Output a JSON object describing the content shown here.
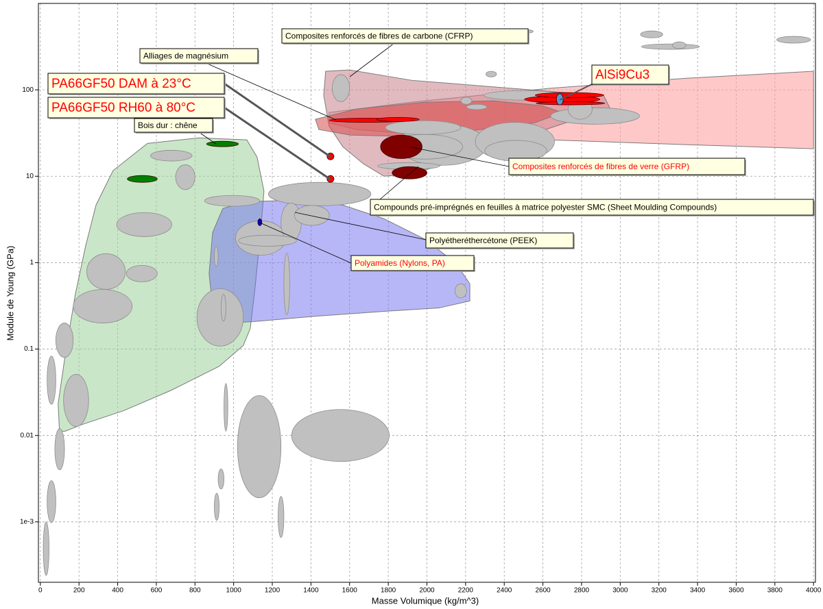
{
  "chart_data": {
    "type": "ashby",
    "xlabel": "Masse Volumique (kg/m^3)",
    "ylabel": "Module de Young (GPa)",
    "xlim": [
      -10,
      4010
    ],
    "ylim": [
      0.0002,
      1000
    ],
    "yscale": "log",
    "grid": true,
    "xticks": [
      0,
      200,
      400,
      600,
      800,
      1000,
      1200,
      1400,
      1600,
      1800,
      2000,
      2200,
      2400,
      2600,
      2800,
      3000,
      3200,
      3400,
      3600,
      3800,
      4000
    ],
    "yticks": [
      {
        "value": 0.001,
        "label": "1e-3"
      },
      0.01,
      0.1,
      1,
      10,
      100
    ],
    "envelopes": [
      {
        "color": "#9fd19a",
        "x": [
          99,
          92,
          128,
          181,
          234,
          288,
          376,
          554,
          820,
          1068,
          1121,
          1157,
          1139,
          1111,
          1086,
          1050,
          926,
          678,
          429,
          216,
          128
        ],
        "y": [
          0.0112,
          0.0232,
          0.0833,
          0.431,
          1.55,
          4.64,
          11.6,
          24,
          27.8,
          26.4,
          16.7,
          6.7,
          2.23,
          0.518,
          0.173,
          0.11,
          0.0633,
          0.0334,
          0.0193,
          0.0134,
          0.0112
        ]
      },
      {
        "color": "#6f6ff0",
        "x": [
          891,
          873,
          891,
          944,
          1068,
          1317,
          1565,
          1778,
          1991,
          2151,
          2222,
          2222,
          2062,
          1778,
          1423,
          1104,
          962
        ],
        "y": [
          0.299,
          0.746,
          2.23,
          4.24,
          5.08,
          5.28,
          4.64,
          3.22,
          1.86,
          0.98,
          0.567,
          0.36,
          0.299,
          0.273,
          0.24,
          0.208,
          0.2
        ]
      },
      {
        "color": "#ff9a9a",
        "x": [
          1494,
          1920,
          2630,
          3340,
          4000,
          4000,
          3340,
          2630,
          2097,
          1636,
          1494
        ],
        "y": [
          54.7,
          72,
          104,
          136,
          164,
          20.8,
          23.2,
          26.4,
          28.8,
          34.7,
          41.6
        ]
      },
      {
        "color": "#c8828c",
        "x": [
          1476,
          1601,
          1920,
          2346,
          2665,
          2914,
          2949,
          2772,
          2559,
          2346,
          2097,
          1920,
          1778,
          1672,
          1565,
          1494,
          1466
        ],
        "y": [
          164,
          170,
          129,
          108,
          95,
          86,
          60,
          45.6,
          31.6,
          21.9,
          13.9,
          10.6,
          10,
          13.9,
          21.9,
          38,
          86
        ]
      },
      {
        "color": "#d94a4a",
        "x": [
          1423,
          1636,
          1991,
          2346,
          2594,
          2701,
          2559,
          2275,
          1920,
          1601,
          1441
        ],
        "y": [
          45.6,
          60,
          72,
          74.6,
          65.6,
          54.7,
          41.6,
          34.7,
          28.8,
          30,
          34.7
        ]
      }
    ],
    "ellipses": [
      {
        "color": "#c0c0c0",
        "x": [
          1510,
          1600
        ],
        "y": [
          73,
          150
        ]
      },
      {
        "color": "#c0c0c0",
        "x": [
          570,
          785
        ],
        "y": [
          15,
          20
        ]
      },
      {
        "color": "#c0c0c0",
        "x": [
          700,
          800
        ],
        "y": [
          7,
          13.6
        ]
      },
      {
        "color": "#c0c0c0",
        "x": [
          395,
          680
        ],
        "y": [
          2,
          3.8
        ]
      },
      {
        "color": "#c0c0c0",
        "x": [
          240,
          440
        ],
        "y": [
          0.49,
          1.27
        ]
      },
      {
        "color": "#c0c0c0",
        "x": [
          445,
          605
        ],
        "y": [
          0.6,
          0.93
        ]
      },
      {
        "color": "#c0c0c0",
        "x": [
          170,
          475
        ],
        "y": [
          0.2,
          0.49
        ]
      },
      {
        "color": "#c0c0c0",
        "x": [
          80,
          170
        ],
        "y": [
          0.08,
          0.2
        ]
      },
      {
        "color": "#c0c0c0",
        "x": [
          35,
          80
        ],
        "y": [
          0.023,
          0.083
        ]
      },
      {
        "color": "#c0c0c0",
        "x": [
          120,
          250
        ],
        "y": [
          0.0127,
          0.051
        ]
      },
      {
        "color": "#c0c0c0",
        "x": [
          75,
          125
        ],
        "y": [
          0.004,
          0.012
        ]
      },
      {
        "color": "#c0c0c0",
        "x": [
          35,
          80
        ],
        "y": [
          0.00098,
          0.003
        ]
      },
      {
        "color": "#c0c0c0",
        "x": [
          15,
          45
        ],
        "y": [
          0.00024,
          0.001
        ]
      },
      {
        "color": "#c0c0c0",
        "x": [
          1020,
          1245
        ],
        "y": [
          0.0019,
          0.029
        ]
      },
      {
        "color": "#c0c0c0",
        "x": [
          1300,
          1805
        ],
        "y": [
          0.005,
          0.02
        ]
      },
      {
        "color": "#c0c0c0",
        "x": [
          810,
          1050
        ],
        "y": [
          0.108,
          0.5
        ]
      },
      {
        "color": "#c0c0c0",
        "x": [
          935,
          960
        ],
        "y": [
          0.21,
          0.43
        ]
      },
      {
        "color": "#c0c0c0",
        "x": [
          1260,
          1290
        ],
        "y": [
          0.25,
          1.29
        ]
      },
      {
        "color": "#c0c0c0",
        "x": [
          900,
          920
        ],
        "y": [
          0.9,
          1.55
        ]
      },
      {
        "color": "#c0c0c0",
        "x": [
          950,
          970
        ],
        "y": [
          0.0112,
          0.04
        ]
      },
      {
        "color": "#c0c0c0",
        "x": [
          920,
          950
        ],
        "y": [
          0.0024,
          0.0041
        ]
      },
      {
        "color": "#c0c0c0",
        "x": [
          900,
          925
        ],
        "y": [
          0.00104,
          0.00215
        ]
      },
      {
        "color": "#c0c0c0",
        "x": [
          1230,
          1260
        ],
        "y": [
          0.00066,
          0.00197
        ]
      },
      {
        "color": "#c0c0c0",
        "x": [
          1180,
          1710
        ],
        "y": [
          4.56,
          8.5
        ]
      },
      {
        "color": "#c0c0c0",
        "x": [
          850,
          1135
        ],
        "y": [
          4.5,
          6
        ]
      },
      {
        "color": "#c0c0c0",
        "x": [
          1010,
          1270
        ],
        "y": [
          1.22,
          3.05
        ]
      },
      {
        "color": "#c0c0c0",
        "x": [
          1245,
          1350
        ],
        "y": [
          1.76,
          4.9
        ]
      },
      {
        "color": "#c0c0c0",
        "x": [
          1315,
          1495
        ],
        "y": [
          2.7,
          4.6
        ]
      },
      {
        "color": "#c0c0c0",
        "x": [
          1025,
          1325
        ],
        "y": [
          1.55,
          2.08
        ]
      },
      {
        "color": "#c0c0c0",
        "x": [
          2145,
          2205
        ],
        "y": [
          0.39,
          0.57
        ]
      },
      {
        "color": "#c0c0c0",
        "x": [
          1850,
          2310
        ],
        "y": [
          13.4,
          40
        ]
      },
      {
        "color": "#c0c0c0",
        "x": [
          2250,
          2660
        ],
        "y": [
          15.2,
          42
        ]
      },
      {
        "color": "#c0c0c0",
        "x": [
          2300,
          2620
        ],
        "y": [
          15,
          26
        ]
      },
      {
        "color": "#c0c0c0",
        "x": [
          1795,
          2185
        ],
        "y": [
          15.8,
          30.5
        ]
      },
      {
        "color": "#c0c0c0",
        "x": [
          1785,
          2175
        ],
        "y": [
          30.5,
          44
        ]
      },
      {
        "color": "#c0c0c0",
        "x": [
          1745,
          2065
        ],
        "y": [
          12,
          14.4
        ]
      },
      {
        "color": "#c0c0c0",
        "x": [
          2295,
          2710
        ],
        "y": [
          76,
          98
        ]
      },
      {
        "color": "#c0c0c0",
        "x": [
          2640,
          3100
        ],
        "y": [
          40,
          62
        ]
      },
      {
        "color": "#c0c0c0",
        "x": [
          2730,
          2855
        ],
        "y": [
          45.6,
          79
        ]
      },
      {
        "color": "#c0c0c0",
        "x": [
          2205,
          2310
        ],
        "y": [
          59,
          68
        ]
      },
      {
        "color": "#c0c0c0",
        "x": [
          2175,
          2232
        ],
        "y": [
          68,
          82
        ]
      },
      {
        "color": "#c0c0c0",
        "x": [
          2305,
          2360
        ],
        "y": [
          141,
          164
        ]
      },
      {
        "color": "#c0c0c0",
        "x": [
          3105,
          3220
        ],
        "y": [
          400,
          480
        ]
      },
      {
        "color": "#c0c0c0",
        "x": [
          3110,
          3410
        ],
        "y": [
          294,
          340
        ]
      },
      {
        "color": "#c0c0c0",
        "x": [
          3270,
          3340
        ],
        "y": [
          300,
          360
        ]
      },
      {
        "color": "#c0c0c0",
        "x": [
          3810,
          3985
        ],
        "y": [
          347,
          416
        ]
      },
      {
        "color": "#c0c0c0",
        "x": [
          2445,
          2550
        ],
        "y": [
          450,
          500
        ]
      },
      {
        "color": "#008000",
        "x": [
          450,
          605
        ],
        "y": [
          8.5,
          10.2
        ]
      },
      {
        "color": "#008000",
        "x": [
          860,
          1025
        ],
        "y": [
          22,
          25.4
        ]
      },
      {
        "color": "#800000",
        "x": [
          1760,
          1975
        ],
        "y": [
          16,
          30
        ]
      },
      {
        "color": "#800000",
        "x": [
          1820,
          2000
        ],
        "y": [
          9.3,
          12.9
        ]
      },
      {
        "color": "#ff0000",
        "x": [
          1495,
          1885
        ],
        "y": [
          42,
          47
        ]
      },
      {
        "color": "#ff0000",
        "x": [
          1740,
          1960
        ],
        "y": [
          43,
          48
        ]
      },
      {
        "color": "#ff0000",
        "x": [
          2505,
          2895
        ],
        "y": [
          71,
          85
        ]
      },
      {
        "color": "#ff0000",
        "x": [
          2560,
          2915
        ],
        "y": [
          81,
          93
        ]
      },
      {
        "color": "#ff0000",
        "x": [
          2565,
          2920
        ],
        "y": [
          67,
          73
        ]
      },
      {
        "color": "#5b9bd5",
        "x": [
          2670,
          2705
        ],
        "y": [
          67,
          90
        ]
      },
      {
        "color": "#ff0000",
        "x": [
          1483,
          1519
        ],
        "y": [
          15.5,
          18.6
        ]
      },
      {
        "color": "#ff0000",
        "x": [
          1483,
          1519
        ],
        "y": [
          8.5,
          10.2
        ]
      },
      {
        "color": "#0000cc",
        "x": [
          1125,
          1146
        ],
        "y": [
          2.68,
          3.22
        ]
      }
    ],
    "annotations": [
      {
        "text": "Composites renforcés de fibres de carbone (CFRP)",
        "color": "#000000"
      },
      {
        "text": "Alliages de magnésium",
        "color": "#000000"
      },
      {
        "text": "PA66GF50 DAM à 23°C",
        "color": "#ff0000"
      },
      {
        "text": "PA66GF50 RH60 à 80°C",
        "color": "#ff0000"
      },
      {
        "text": "Bois dur : chêne",
        "color": "#000000"
      },
      {
        "text": "AlSi9Cu3",
        "color": "#ff0000"
      },
      {
        "text": "Composites renforcés de fibres de verre (GFRP)",
        "color": "#ff0000"
      },
      {
        "text": "Compounds pré-imprégnés en feuilles à matrice polyester SMC (Sheet Moulding Compounds)",
        "color": "#000000"
      },
      {
        "text": "Polyétheréthercétone (PEEK)",
        "color": "#000000"
      },
      {
        "text": "Polyamides (Nylons, PA)",
        "color": "#ff0000"
      }
    ]
  }
}
